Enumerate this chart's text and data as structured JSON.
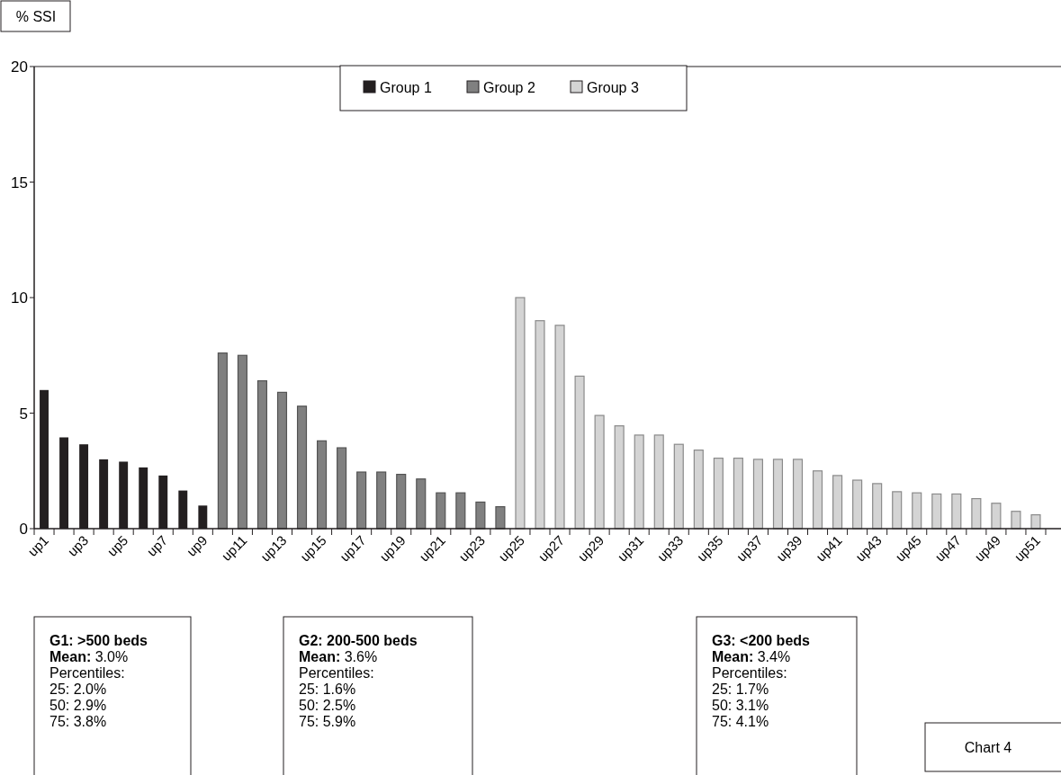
{
  "chart_data": {
    "type": "bar",
    "ylabel": "% SSI",
    "categories": [
      "up1",
      null,
      "up3",
      null,
      "up5",
      null,
      "up7",
      null,
      "up9",
      null,
      "up11",
      null,
      "up13",
      null,
      "up15",
      null,
      "up17",
      null,
      "up19",
      null,
      "up21",
      null,
      "up23",
      null,
      "up25",
      null,
      "up27",
      null,
      "up29",
      null,
      "up31",
      null,
      "up33",
      null,
      "up35",
      null,
      "up37",
      null,
      "up39",
      null,
      "up41",
      null,
      "up43",
      null,
      "up45",
      null,
      "up47",
      null,
      "up49",
      null,
      "up51"
    ],
    "series": [
      {
        "name": "Group 1",
        "color": "#231f20",
        "values": [
          6.0,
          3.95,
          3.65,
          3.0,
          2.9,
          2.65,
          2.3,
          1.65,
          1.0,
          null,
          null,
          null,
          null,
          null,
          null,
          null,
          null,
          null,
          null,
          null,
          null,
          null,
          null,
          null,
          null,
          null,
          null,
          null,
          null,
          null,
          null,
          null,
          null,
          null,
          null,
          null,
          null,
          null,
          null,
          null,
          null,
          null,
          null,
          null,
          null,
          null,
          null,
          null,
          null,
          null,
          null
        ]
      },
      {
        "name": "Group 2",
        "color": "#808080",
        "values": [
          null,
          null,
          null,
          null,
          null,
          null,
          null,
          null,
          null,
          7.6,
          7.5,
          6.4,
          5.9,
          5.3,
          3.8,
          3.5,
          2.45,
          2.45,
          2.35,
          2.15,
          1.55,
          1.55,
          1.15,
          0.95,
          null,
          null,
          null,
          null,
          null,
          null,
          null,
          null,
          null,
          null,
          null,
          null,
          null,
          null,
          null,
          null,
          null,
          null,
          null,
          null,
          null,
          null,
          null,
          null,
          null,
          null,
          null
        ]
      },
      {
        "name": "Group 3",
        "color": "#d4d4d4",
        "values": [
          null,
          null,
          null,
          null,
          null,
          null,
          null,
          null,
          null,
          null,
          null,
          null,
          null,
          null,
          null,
          null,
          null,
          null,
          null,
          null,
          null,
          null,
          null,
          null,
          10.0,
          9.0,
          8.8,
          6.6,
          4.9,
          4.45,
          4.05,
          4.05,
          3.65,
          3.4,
          3.05,
          3.05,
          3.0,
          3.0,
          3.0,
          2.5,
          2.3,
          2.1,
          1.95,
          1.6,
          1.55,
          1.5,
          1.5,
          1.3,
          1.1,
          0.75,
          0.6
        ]
      }
    ],
    "ylim": [
      0,
      20
    ],
    "yticks": [
      0,
      5,
      10,
      15,
      20
    ],
    "grid": false,
    "legend": "top",
    "annotations": [
      "G1: >500 beds\nMean: 3.0%\nPercentiles:\n25: 2.0%\n50: 2.9%\n75: 3.8%",
      "G2: 200-500 beds\nMean: 3.6%\nPercentiles:\n25: 1.6%\n50: 2.5%\n75: 5.9%",
      "G3: <200 beds\nMean: 3.4%\nPercentiles:\n25: 1.7%\n50: 3.1%\n75: 4.1%",
      "Chart 4"
    ]
  }
}
